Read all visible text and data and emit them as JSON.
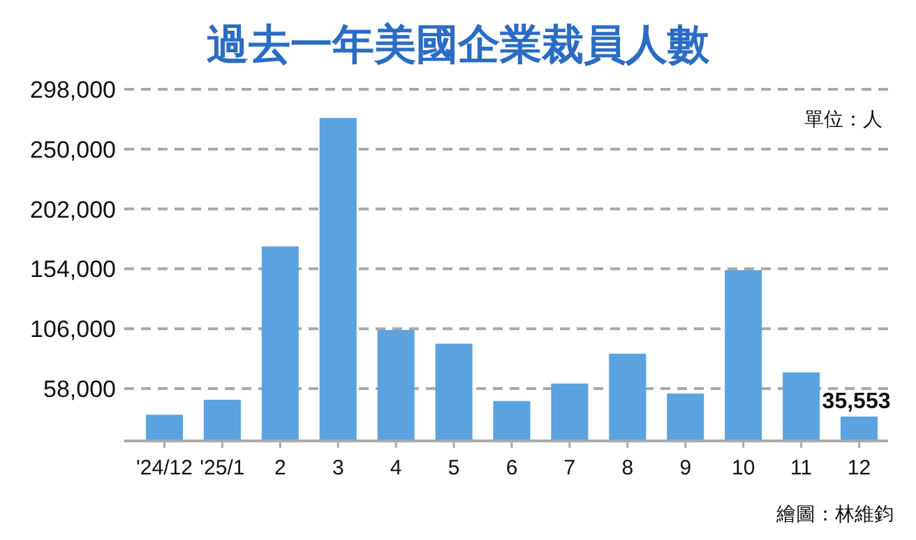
{
  "chart_data": {
    "type": "bar",
    "title": "過去一年美國企業裁員人數",
    "categories": [
      "'24/12",
      "'25/1",
      "2",
      "3",
      "4",
      "5",
      "6",
      "7",
      "8",
      "9",
      "10",
      "11",
      "12"
    ],
    "values": [
      37000,
      49000,
      172000,
      275000,
      105000,
      94000,
      48000,
      62000,
      86000,
      54000,
      153000,
      71000,
      35553
    ],
    "color": "#5ba3e0",
    "value_labels": [
      null,
      null,
      null,
      null,
      null,
      null,
      null,
      null,
      null,
      null,
      null,
      null,
      "35,553"
    ],
    "ylim": [
      16000,
      298000
    ],
    "yticks": [
      {
        "value": 58000,
        "label": "58,000"
      },
      {
        "value": 106000,
        "label": "106,000"
      },
      {
        "value": 154000,
        "label": "154,000"
      },
      {
        "value": 202000,
        "label": "202,000"
      },
      {
        "value": 250000,
        "label": "250,000"
      },
      {
        "value": 298000,
        "label": "298,000"
      }
    ],
    "grid": "y",
    "annotations": [
      "單位：人",
      "繪圖：林維鈞"
    ]
  }
}
